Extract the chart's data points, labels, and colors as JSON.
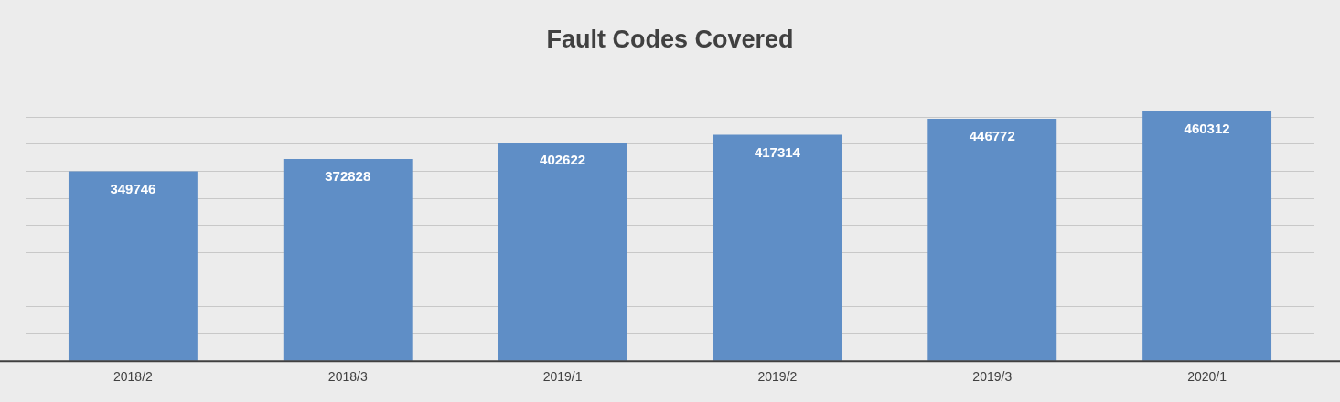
{
  "chart_data": {
    "type": "bar",
    "title": "Fault Codes Covered",
    "categories": [
      "2018/2",
      "2018/3",
      "2019/1",
      "2019/2",
      "2019/3",
      "2020/1"
    ],
    "values": [
      349746,
      372828,
      402622,
      417314,
      446772,
      460312
    ],
    "color": "#5f8ec6",
    "ylim": [
      0,
      500000
    ],
    "yticks": [
      {
        "value": 0,
        "label": null
      },
      {
        "value": 50000,
        "label": null
      },
      {
        "value": 100000,
        "label": null
      },
      {
        "value": 150000,
        "label": null
      },
      {
        "value": 200000,
        "label": null
      },
      {
        "value": 250000,
        "label": null
      },
      {
        "value": 300000,
        "label": null
      },
      {
        "value": 350000,
        "label": null
      },
      {
        "value": 400000,
        "label": null
      },
      {
        "value": 450000,
        "label": null
      },
      {
        "value": 500000,
        "label": null
      }
    ],
    "grid": "y",
    "tick_labels": "x",
    "data_labels": true,
    "legend": false
  }
}
